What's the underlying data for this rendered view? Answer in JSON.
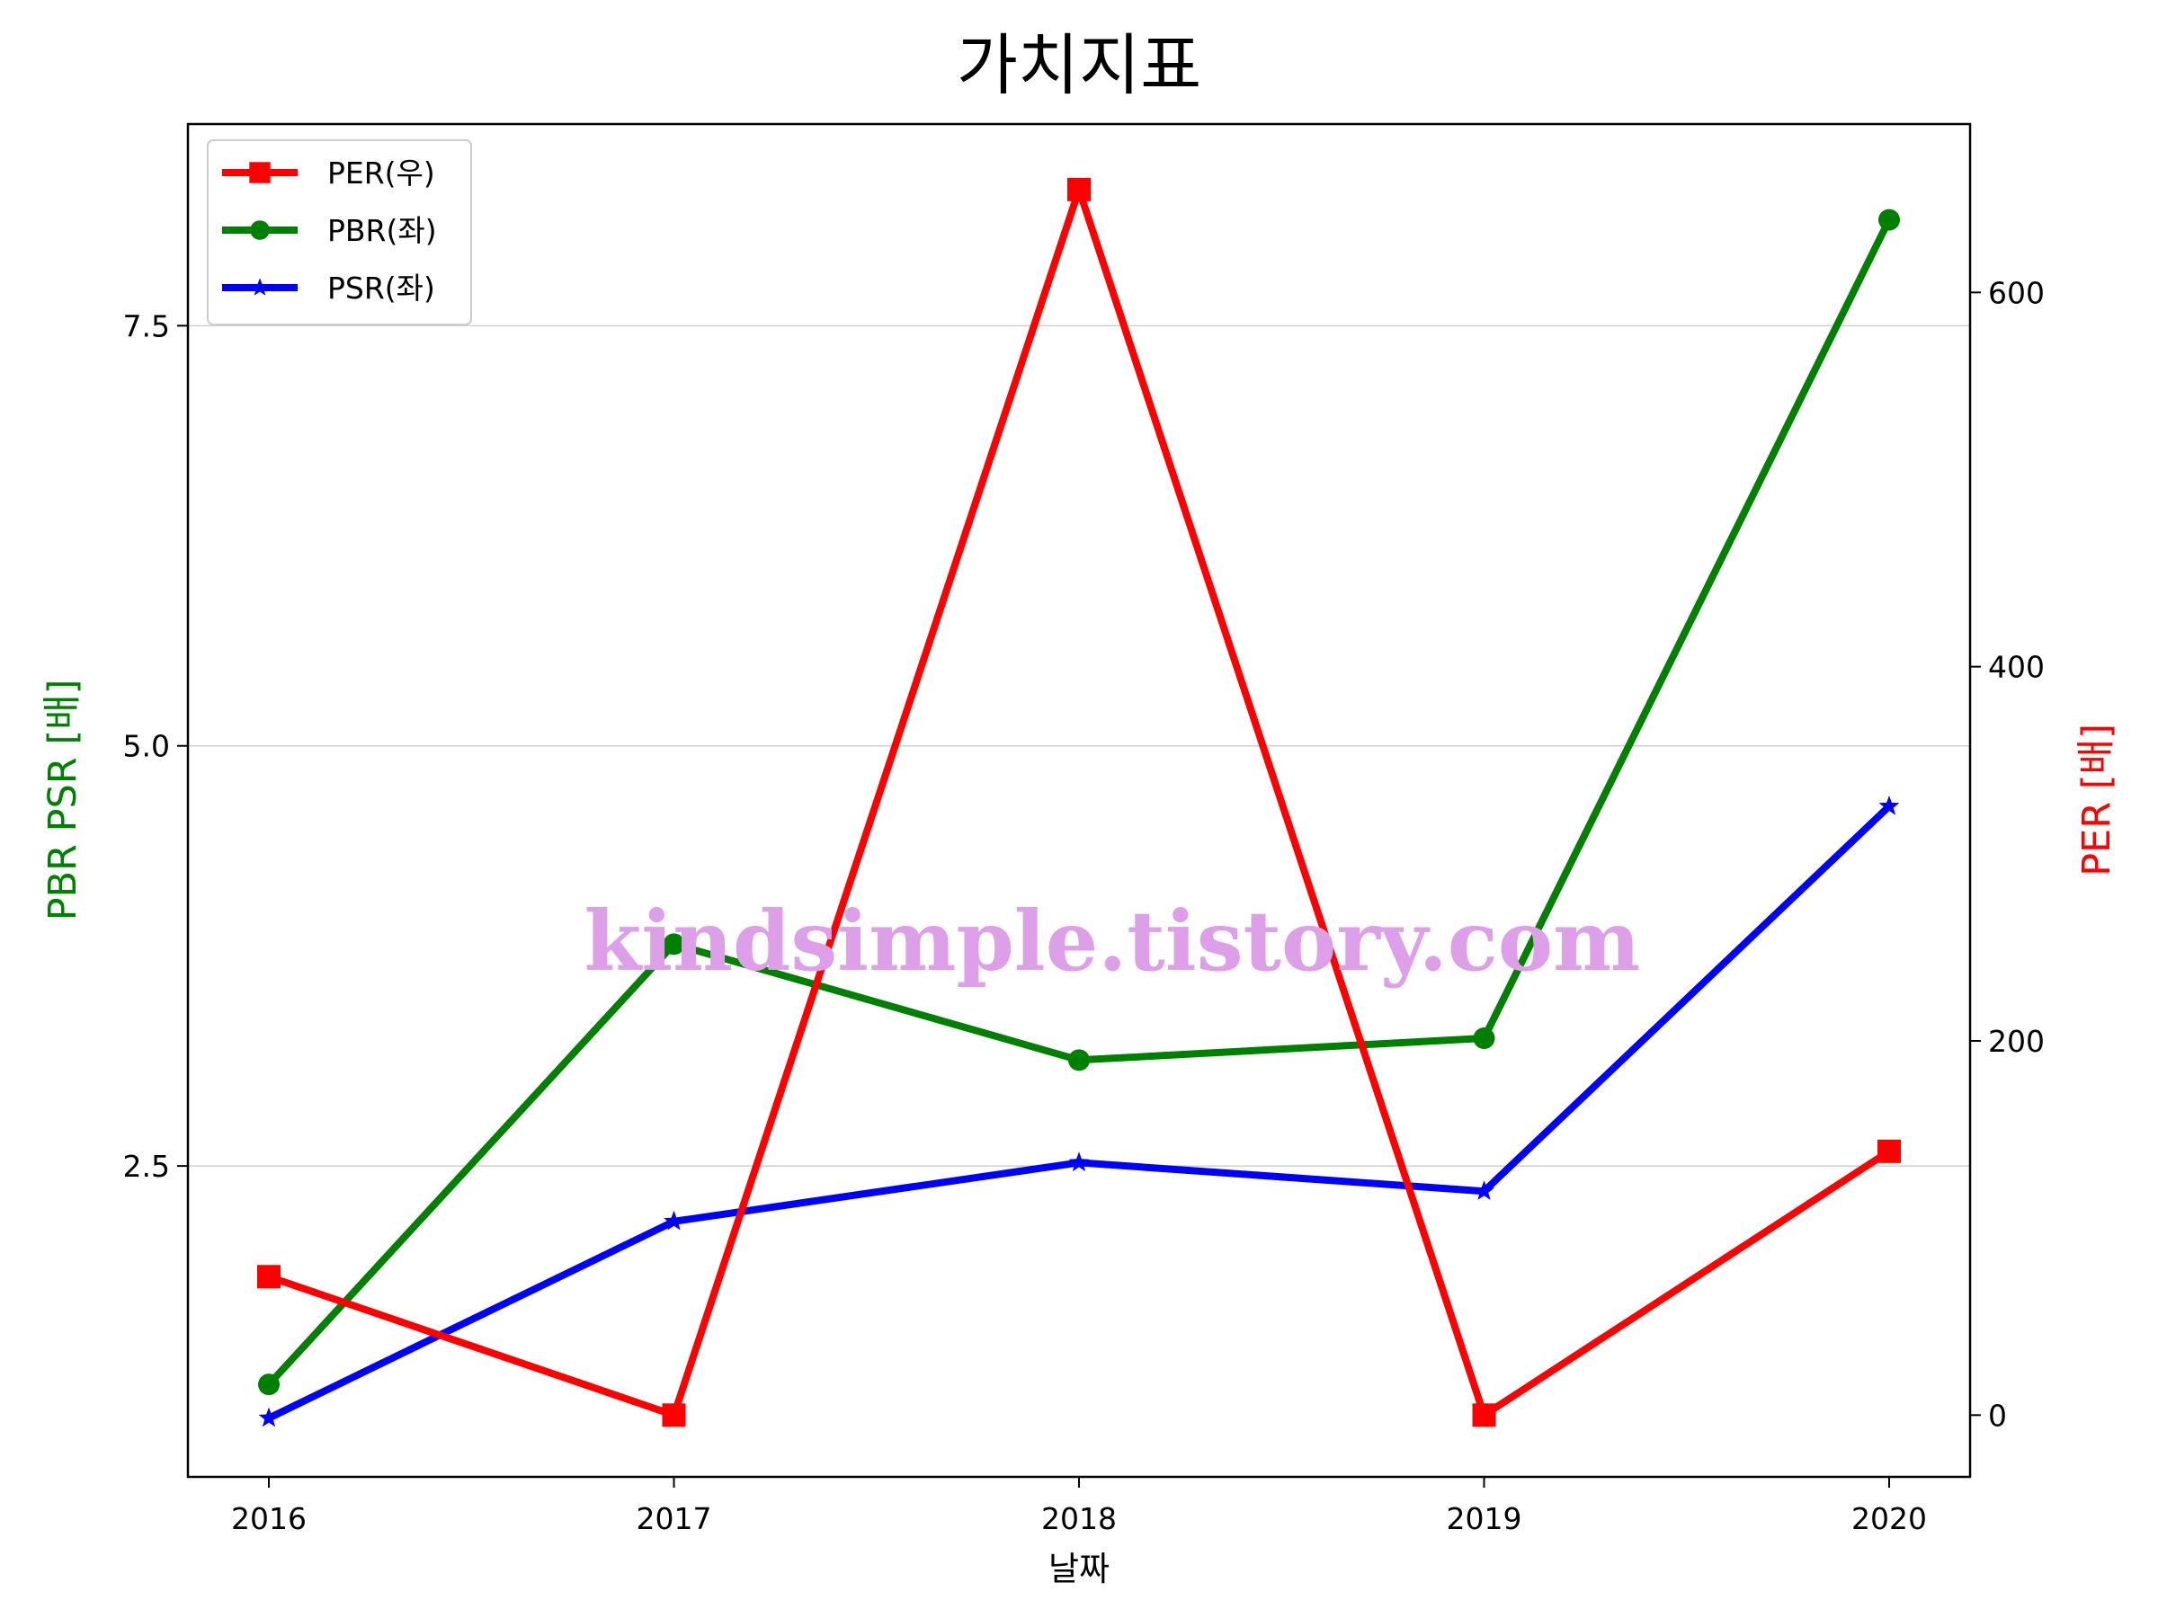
{
  "chart_data": {
    "type": "line",
    "title": "가치지표",
    "xlabel": "날짜",
    "ylabel_left": "PBR PSR [배]",
    "ylabel_right": "PER [배]",
    "categories": [
      "2016",
      "2017",
      "2018",
      "2019",
      "2020"
    ],
    "left_axis": {
      "ylim": [
        0.65,
        8.7
      ],
      "ticks": [
        "2.5",
        "5.0",
        "7.5"
      ],
      "tick_values": [
        2.5,
        5.0,
        7.5
      ],
      "grid": true
    },
    "right_axis": {
      "ylim": [
        -33,
        690
      ],
      "ticks": [
        "0",
        "200",
        "400",
        "600"
      ],
      "tick_values": [
        0,
        200,
        400,
        600
      ]
    },
    "series": [
      {
        "name": "PER(우)",
        "axis": "right",
        "color": "#ff0000",
        "marker": "square",
        "values": [
          74,
          0,
          655,
          0,
          141
        ]
      },
      {
        "name": "PBR(좌)",
        "axis": "left",
        "color": "#008000",
        "marker": "circle",
        "values": [
          1.2,
          3.82,
          3.13,
          3.26,
          8.13
        ]
      },
      {
        "name": "PSR(좌)",
        "axis": "left",
        "color": "#0000ff",
        "marker": "star",
        "values": [
          1.0,
          2.17,
          2.52,
          2.35,
          4.64
        ]
      }
    ],
    "legend": {
      "placement": "top-left",
      "order": [
        "PER(우)",
        "PBR(좌)",
        "PSR(좌)"
      ]
    },
    "watermark": "kindsimple.tistory.com",
    "watermark_color": "#dda0e8"
  }
}
